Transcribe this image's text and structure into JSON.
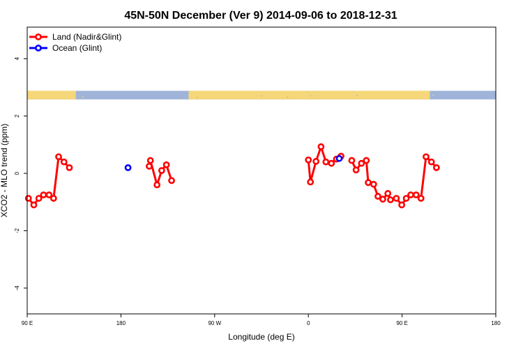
{
  "chart_data": {
    "type": "line",
    "title": "45N-50N December (Ver 9)   2014-09-06 to 2018-12-31",
    "xlabel": "Longitude (deg E)",
    "ylabel": "XCO2 - MLO trend (ppm)",
    "xlim": [
      -90,
      180
    ],
    "ylim": [
      -4.9,
      5.1
    ],
    "x_ticks": [
      {
        "value": -90,
        "label": "90 E"
      },
      {
        "value": -36,
        "label": "180"
      },
      {
        "value": 18,
        "label": "90 W"
      },
      {
        "value": 72,
        "label": "0"
      },
      {
        "value": 126,
        "label": "90 E"
      },
      {
        "value": 180,
        "label": "180"
      }
    ],
    "y_ticks": [
      -4,
      -2,
      0,
      2,
      4
    ],
    "legend": {
      "position": "top-left"
    },
    "map_strip": {
      "y_range": [
        2.58,
        2.88
      ],
      "ocean_color": "#9fb4d8",
      "land_color": "#f5d77a"
    },
    "series": [
      {
        "name": "Land (Nadir&Glint)",
        "color": "#ff0000",
        "segments": [
          [
            [
              -89.3,
              -0.87
            ],
            [
              -86.2,
              -1.1
            ],
            [
              -83.3,
              -0.87
            ],
            [
              -80.6,
              -0.75
            ],
            [
              -77.4,
              -0.75
            ],
            [
              -74.8,
              -0.87
            ],
            [
              -71.9,
              0.58
            ],
            [
              -68.8,
              0.4
            ],
            [
              -65.7,
              0.2
            ]
          ],
          [
            [
              -19.7,
              0.25
            ],
            [
              -19.0,
              0.45
            ],
            [
              -15.2,
              -0.4
            ],
            [
              -12.5,
              0.1
            ],
            [
              -9.8,
              0.3
            ],
            [
              -6.8,
              -0.25
            ]
          ],
          [
            [
              72.0,
              0.47
            ],
            [
              73.2,
              -0.3
            ],
            [
              76.4,
              0.42
            ],
            [
              79.3,
              0.93
            ],
            [
              82.1,
              0.4
            ],
            [
              85.3,
              0.35
            ],
            [
              88.2,
              0.5
            ],
            [
              90.8,
              0.6
            ]
          ],
          [
            [
              97.0,
              0.45
            ],
            [
              99.5,
              0.12
            ],
            [
              102.6,
              0.35
            ],
            [
              105.4,
              0.45
            ],
            [
              106.5,
              -0.32
            ],
            [
              109.6,
              -0.38
            ],
            [
              112.1,
              -0.8
            ],
            [
              114.9,
              -0.9
            ],
            [
              117.8,
              -0.7
            ],
            [
              119.3,
              -0.92
            ],
            [
              122.7,
              -0.87
            ],
            [
              125.8,
              -1.1
            ],
            [
              128.4,
              -0.87
            ],
            [
              131.0,
              -0.75
            ],
            [
              134.1,
              -0.75
            ],
            [
              136.9,
              -0.87
            ],
            [
              139.8,
              0.58
            ],
            [
              142.9,
              0.4
            ],
            [
              145.8,
              0.2
            ]
          ]
        ]
      },
      {
        "name": "Ocean (Glint)",
        "color": "#0000ff",
        "segments": [
          [
            [
              -31.9,
              0.2
            ]
          ],
          [
            [
              89.8,
              0.52
            ]
          ]
        ]
      }
    ]
  }
}
